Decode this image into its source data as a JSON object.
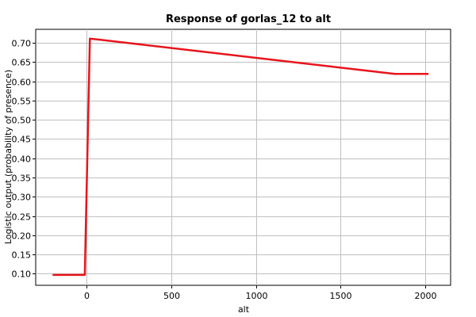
{
  "chart_data": {
    "type": "line",
    "title": "Response of gorlas_12 to alt",
    "xlabel": "alt",
    "ylabel": "Logistic output (probability of presence)",
    "xlim": [
      -300,
      2150
    ],
    "ylim": [
      0.07,
      0.735
    ],
    "xticks": [
      0,
      500,
      1000,
      1500,
      2000
    ],
    "yticks": [
      0.1,
      0.15,
      0.2,
      0.25,
      0.3,
      0.35,
      0.4,
      0.45,
      0.5,
      0.55,
      0.6,
      0.65,
      0.7
    ],
    "xtick_labels": [
      "0",
      "500",
      "1000",
      "1500",
      "2000"
    ],
    "ytick_labels": [
      "0.10",
      "0.15",
      "0.20",
      "0.25",
      "0.30",
      "0.35",
      "0.40",
      "0.45",
      "0.50",
      "0.55",
      "0.60",
      "0.65",
      "0.70"
    ],
    "grid": true,
    "series": [
      {
        "color": "#e8141b",
        "x": [
          -200,
          -10,
          20,
          1820,
          2020
        ],
        "y": [
          0.097,
          0.097,
          0.711,
          0.619,
          0.619
        ]
      }
    ]
  }
}
